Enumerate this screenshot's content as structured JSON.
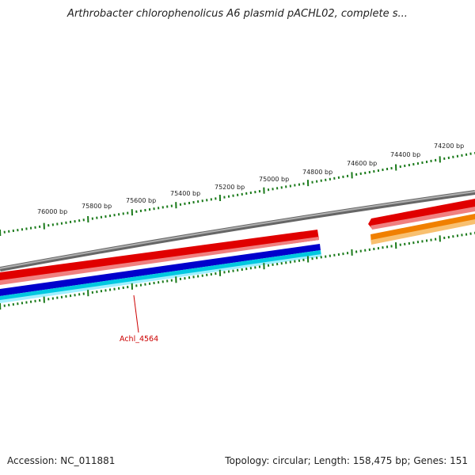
{
  "title": "Arthrobacter chlorophenolicus A6 plasmid pACHL02, complete s...",
  "footer": {
    "accession": "Accession: NC_011881",
    "topology": "Topology: circular; Length: 158,475 bp; Genes: 151"
  },
  "ticks": {
    "labels": [
      "74200 bp",
      "74400 bp",
      "74600 bp",
      "74800 bp",
      "75000 bp",
      "75200 bp",
      "75400 bp",
      "75600 bp",
      "75800 bp",
      "76000 bp"
    ]
  },
  "gene_labels": [
    "Achl_4564"
  ],
  "colors": {
    "backbone": "#888888",
    "forward_gene": "#e00000",
    "forward_gene_light": "#f08080",
    "orange_gene": "#f08000",
    "orange_gene_light": "#f8c070",
    "blue_gene": "#0000cc",
    "cyan_gene": "#00c8e0",
    "tick": "#1a7a1a",
    "gene_label": "#cc0000"
  }
}
